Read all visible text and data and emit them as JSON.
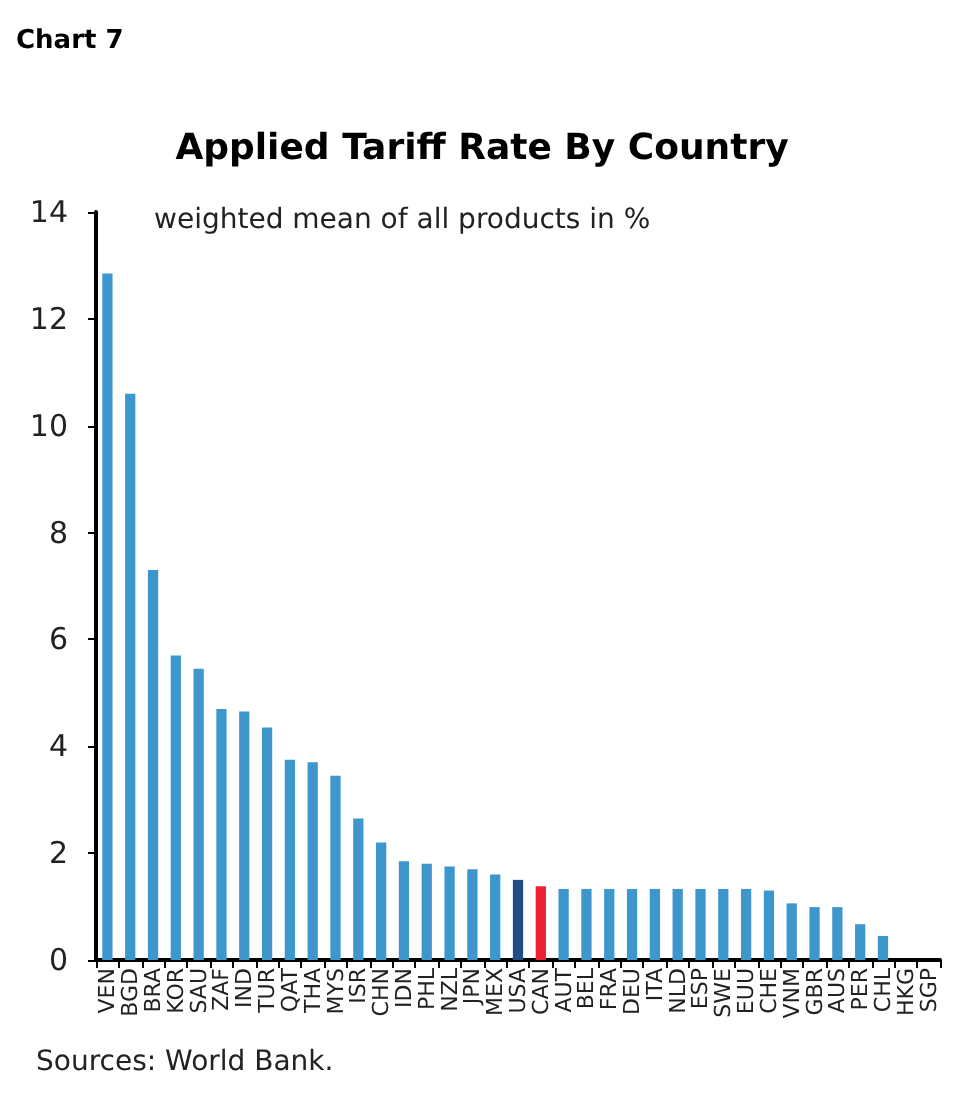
{
  "chart_data": {
    "type": "bar",
    "title": "Applied Tariff Rate By Country",
    "subtitle": "weighted mean of all products in %",
    "annotations": [
      "Chart 7",
      "Sources: World Bank."
    ],
    "categories": [
      "VEN",
      "BGD",
      "BRA",
      "KOR",
      "SAU",
      "ZAF",
      "IND",
      "TUR",
      "QAT",
      "THA",
      "MYS",
      "ISR",
      "CHN",
      "IDN",
      "PHL",
      "NZL",
      "JPN",
      "MEX",
      "USA",
      "CAN",
      "AUT",
      "BEL",
      "FRA",
      "DEU",
      "ITA",
      "NLD",
      "ESP",
      "SWE",
      "EUU",
      "CHE",
      "VNM",
      "GBR",
      "AUS",
      "PER",
      "CHL",
      "HKG",
      "SGP"
    ],
    "values": [
      12.85,
      10.6,
      7.3,
      5.7,
      5.45,
      4.7,
      4.65,
      4.35,
      3.75,
      3.7,
      3.45,
      2.65,
      2.2,
      1.85,
      1.8,
      1.75,
      1.7,
      1.6,
      1.5,
      1.38,
      1.33,
      1.33,
      1.33,
      1.33,
      1.33,
      1.33,
      1.33,
      1.33,
      1.33,
      1.3,
      1.06,
      0.99,
      0.99,
      0.67,
      0.45,
      0,
      0
    ],
    "colors": [
      "#3d97cc",
      "#3d97cc",
      "#3d97cc",
      "#3d97cc",
      "#3d97cc",
      "#3d97cc",
      "#3d97cc",
      "#3d97cc",
      "#3d97cc",
      "#3d97cc",
      "#3d97cc",
      "#3d97cc",
      "#3d97cc",
      "#3d97cc",
      "#3d97cc",
      "#3d97cc",
      "#3d97cc",
      "#3d97cc",
      "#1f4e86",
      "#ec2231",
      "#3d97cc",
      "#3d97cc",
      "#3d97cc",
      "#3d97cc",
      "#3d97cc",
      "#3d97cc",
      "#3d97cc",
      "#3d97cc",
      "#3d97cc",
      "#3d97cc",
      "#3d97cc",
      "#3d97cc",
      "#3d97cc",
      "#3d97cc",
      "#3d97cc",
      "#3d97cc",
      "#3d97cc"
    ],
    "ylim": [
      0,
      14
    ],
    "yticks": [
      0,
      2,
      4,
      6,
      8,
      10,
      12,
      14
    ]
  }
}
